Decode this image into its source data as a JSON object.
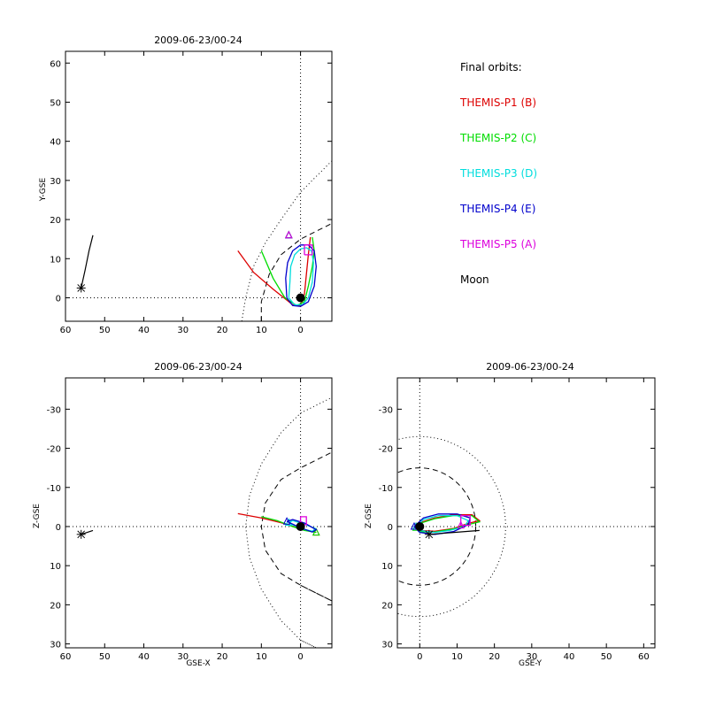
{
  "chart_data": [
    {
      "type": "line",
      "title": "2009-06-23/00-24",
      "xlabel": "",
      "ylabel": "Y-GSE",
      "xlim": [
        60,
        -8
      ],
      "ylim": [
        63,
        -6
      ],
      "xticks": [
        "60",
        "50",
        "40",
        "30",
        "20",
        "10",
        "0"
      ],
      "yticks": [
        "0",
        "10",
        "20",
        "30",
        "40",
        "50",
        "60"
      ],
      "earth": [
        0,
        0
      ],
      "moon_marker": [
        56,
        2.5
      ],
      "moon_track": [
        [
          56,
          2.5
        ],
        [
          55,
          7
        ],
        [
          54,
          12
        ],
        [
          53,
          16
        ]
      ],
      "bowshock": [
        [
          15,
          -6
        ],
        [
          14,
          0
        ],
        [
          12,
          8
        ],
        [
          9,
          14
        ],
        [
          5,
          20
        ],
        [
          0,
          27
        ],
        [
          -4,
          31
        ],
        [
          -8,
          35
        ]
      ],
      "magnetopause": [
        [
          10,
          -6
        ],
        [
          10,
          -1
        ],
        [
          8,
          6
        ],
        [
          5,
          11
        ],
        [
          0,
          15
        ],
        [
          -4,
          17
        ],
        [
          -8,
          19
        ]
      ],
      "series": [
        {
          "name": "THEMIS-P1 (B)",
          "color": "#dd0000",
          "values": [
            [
              16,
              12
            ],
            [
              12,
              6.5
            ],
            [
              7,
              2.2
            ],
            [
              2,
              -1.8
            ],
            [
              0,
              -2
            ],
            [
              -1,
              1
            ],
            [
              -1.5,
              6
            ],
            [
              -2,
              11
            ],
            [
              -2.5,
              15.5
            ]
          ],
          "end": [
            3,
            16
          ]
        },
        {
          "name": "THEMIS-P2 (C)",
          "color": "#00dd00",
          "values": [
            [
              10,
              12
            ],
            [
              7,
              5
            ],
            [
              4,
              0
            ],
            [
              1,
              -2
            ],
            [
              -1,
              -1
            ],
            [
              -2,
              3
            ],
            [
              -3,
              8
            ],
            [
              -3.5,
              12
            ],
            [
              -3,
              15.5
            ]
          ],
          "end": [
            3,
            16
          ]
        },
        {
          "name": "THEMIS-P3 (D)",
          "color": "#00dddd",
          "values": [
            [
              3,
              0
            ],
            [
              1.5,
              -1.8
            ],
            [
              -0.5,
              -1.8
            ],
            [
              -2,
              0
            ],
            [
              -3,
              4
            ],
            [
              -3.3,
              9
            ],
            [
              -2.8,
              12
            ],
            [
              -1.5,
              12.8
            ],
            [
              0,
              12.5
            ],
            [
              1.5,
              11
            ],
            [
              2.5,
              8
            ],
            [
              2.7,
              4
            ],
            [
              3,
              0
            ]
          ],
          "end": [
            3,
            16
          ]
        },
        {
          "name": "THEMIS-P4 (E)",
          "color": "#0000cc",
          "values": [
            [
              3.5,
              0
            ],
            [
              2,
              -2
            ],
            [
              0,
              -2.2
            ],
            [
              -2,
              -1
            ],
            [
              -3.5,
              3
            ],
            [
              -4,
              8
            ],
            [
              -3.5,
              12
            ],
            [
              -2,
              13.5
            ],
            [
              0,
              13.5
            ],
            [
              2,
              12
            ],
            [
              3.3,
              9
            ],
            [
              3.8,
              5
            ],
            [
              3.5,
              0
            ]
          ],
          "end": [
            3,
            16
          ]
        },
        {
          "name": "THEMIS-P5 (A)",
          "color": "#dd00dd",
          "values": [
            [
              -1,
              11
            ],
            [
              -1,
              13.5
            ],
            [
              -3,
              13.5
            ],
            [
              -3,
              11
            ],
            [
              -1,
              11
            ]
          ],
          "end": [
            3,
            16
          ]
        },
        {
          "name": "Moon",
          "color": "#000000",
          "values": [
            [
              56,
              2.5
            ],
            [
              53,
              16
            ]
          ]
        }
      ]
    },
    {
      "type": "line",
      "title": "2009-06-23/00-24",
      "xlabel": "GSE-X",
      "ylabel": "Z-GSE",
      "xlim": [
        60,
        -8
      ],
      "ylim": [
        -38,
        31
      ],
      "xticks": [
        "60",
        "50",
        "40",
        "30",
        "20",
        "10",
        "0"
      ],
      "yticks": [
        "30",
        "20",
        "10",
        "0",
        "-10",
        "-20",
        "-30"
      ],
      "earth": [
        0,
        0
      ],
      "moon_marker": [
        56,
        2
      ],
      "moon_track": [
        [
          56,
          2
        ],
        [
          53,
          1
        ]
      ],
      "bowshock": [
        [
          0,
          29
        ],
        [
          -8,
          33
        ],
        [
          0,
          29
        ],
        [
          5,
          24
        ],
        [
          10,
          16
        ],
        [
          13,
          8
        ],
        [
          14,
          0
        ],
        [
          13,
          -8
        ],
        [
          10,
          -16
        ],
        [
          5,
          -24
        ],
        [
          0,
          -29
        ],
        [
          -8,
          -33
        ]
      ],
      "magnetopause": [
        [
          0,
          15
        ],
        [
          -8,
          19
        ],
        [
          0,
          15
        ],
        [
          5,
          12
        ],
        [
          9,
          6
        ],
        [
          10,
          0
        ],
        [
          9,
          -6
        ],
        [
          5,
          -12
        ],
        [
          0,
          -15
        ],
        [
          -8,
          -19
        ]
      ],
      "series": [
        {
          "name": "THEMIS-P1 (B)",
          "color": "#dd0000",
          "values": [
            [
              16,
              -3.3
            ],
            [
              10,
              -2.2
            ],
            [
              5,
              -1
            ],
            [
              0,
              0.5
            ],
            [
              -4,
              1.5
            ]
          ]
        },
        {
          "name": "THEMIS-P2 (C)",
          "color": "#00dd00",
          "values": [
            [
              10,
              -2.5
            ],
            [
              6,
              -1.5
            ],
            [
              2,
              0
            ],
            [
              -1,
              1
            ],
            [
              -4,
              1.5
            ]
          ]
        },
        {
          "name": "THEMIS-P3 (D)",
          "color": "#00dddd",
          "values": [
            [
              3,
              -1
            ],
            [
              0,
              0.5
            ],
            [
              -3,
              1.2
            ],
            [
              -3.8,
              0.5
            ],
            [
              -1,
              -0.6
            ],
            [
              2,
              -1.5
            ],
            [
              3,
              -1
            ]
          ]
        },
        {
          "name": "THEMIS-P4 (E)",
          "color": "#0000cc",
          "values": [
            [
              3.5,
              -1.3
            ],
            [
              0,
              0.3
            ],
            [
              -3,
              1.4
            ],
            [
              -4,
              0.8
            ],
            [
              -1,
              -0.9
            ],
            [
              2,
              -1.8
            ],
            [
              3.5,
              -1.3
            ]
          ]
        },
        {
          "name": "THEMIS-P5 (A)",
          "color": "#dd00dd",
          "values": [
            [
              0,
              -0.5
            ],
            [
              0,
              -2.5
            ],
            [
              -1.5,
              -2.5
            ],
            [
              -1.5,
              -0.5
            ],
            [
              0,
              -0.5
            ]
          ]
        },
        {
          "name": "Moon",
          "color": "#000000",
          "values": [
            [
              56,
              2
            ],
            [
              53,
              1
            ]
          ]
        }
      ]
    },
    {
      "type": "line",
      "title": "2009-06-23/00-24",
      "xlabel": "GSE-Y",
      "ylabel": "Z-GSE",
      "xlim": [
        -6,
        63
      ],
      "ylim": [
        -38,
        31
      ],
      "xticks": [
        "0",
        "10",
        "20",
        "30",
        "40",
        "50",
        "60"
      ],
      "yticks": [
        "30",
        "20",
        "10",
        "0",
        "-10",
        "-20",
        "-30"
      ],
      "earth": [
        0,
        0
      ],
      "moon_marker": [
        2.5,
        2
      ],
      "moon_track": [
        [
          2.5,
          2
        ],
        [
          16,
          1
        ]
      ],
      "bowshock_circle": [
        0,
        0,
        23
      ],
      "magnetopause_circle": [
        0,
        0,
        15
      ],
      "series": [
        {
          "name": "THEMIS-P1 (B)",
          "color": "#dd0000",
          "values": [
            [
              -1,
              0
            ],
            [
              0,
              1
            ],
            [
              4,
              1.2
            ],
            [
              9,
              0.5
            ],
            [
              13,
              -0.8
            ],
            [
              16,
              -1.5
            ],
            [
              14,
              -3
            ],
            [
              9,
              -3
            ],
            [
              4,
              -2.2
            ],
            [
              0,
              -1
            ],
            [
              -1,
              0
            ]
          ]
        },
        {
          "name": "THEMIS-P2 (C)",
          "color": "#00dd00",
          "values": [
            [
              -1,
              0.3
            ],
            [
              0,
              1.3
            ],
            [
              4,
              1.4
            ],
            [
              9,
              0.6
            ],
            [
              13,
              -0.5
            ],
            [
              16,
              -1.2
            ],
            [
              14,
              -2.8
            ],
            [
              9,
              -2.8
            ],
            [
              4,
              -2
            ],
            [
              0,
              -0.8
            ],
            [
              -1,
              0.3
            ]
          ]
        },
        {
          "name": "THEMIS-P3 (D)",
          "color": "#00dddd",
          "values": [
            [
              -1,
              0
            ],
            [
              0,
              1
            ],
            [
              4,
              1.5
            ],
            [
              8,
              1
            ],
            [
              12,
              0
            ],
            [
              13,
              -1.5
            ],
            [
              10,
              -2.8
            ],
            [
              5,
              -2.8
            ],
            [
              1,
              -1.8
            ],
            [
              -1,
              0
            ]
          ]
        },
        {
          "name": "THEMIS-P4 (E)",
          "color": "#0000cc",
          "values": [
            [
              -1.5,
              0
            ],
            [
              0,
              1.5
            ],
            [
              4,
              2
            ],
            [
              9,
              1.3
            ],
            [
              13,
              -0.5
            ],
            [
              13.5,
              -2.2
            ],
            [
              10,
              -3.2
            ],
            [
              5,
              -3.2
            ],
            [
              1,
              -2.2
            ],
            [
              -1.5,
              0
            ]
          ]
        },
        {
          "name": "THEMIS-P5 (A)",
          "color": "#dd00dd",
          "values": [
            [
              11,
              -0.3
            ],
            [
              13.5,
              -0.3
            ],
            [
              13.5,
              -2.8
            ],
            [
              11,
              -2.8
            ],
            [
              11,
              -0.3
            ]
          ]
        },
        {
          "name": "Moon",
          "color": "#000000",
          "values": [
            [
              2.5,
              2
            ],
            [
              16,
              1
            ]
          ]
        }
      ]
    }
  ],
  "legend": {
    "heading": "Final orbits:",
    "entries": [
      {
        "label": "THEMIS-P1 (B)",
        "color": "#dd0000"
      },
      {
        "label": "THEMIS-P2 (C)",
        "color": "#00dd00"
      },
      {
        "label": "THEMIS-P3 (D)",
        "color": "#00dddd"
      },
      {
        "label": "THEMIS-P4 (E)",
        "color": "#0000cc"
      },
      {
        "label": "THEMIS-P5 (A)",
        "color": "#dd00dd"
      },
      {
        "label": "Moon",
        "color": "#000000"
      }
    ]
  }
}
